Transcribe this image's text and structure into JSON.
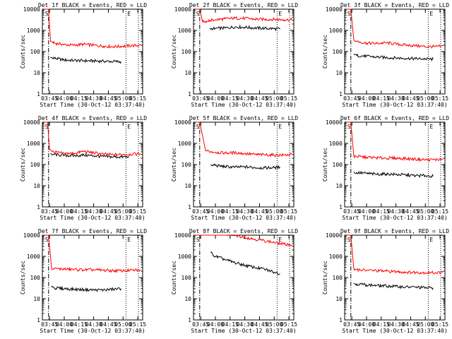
{
  "figure": {
    "xlabel": "Start Time (30-Oct-12 03:37:40)",
    "ylabel": "Counts/sec",
    "x_ticks": [
      "03:45",
      "04:00",
      "04:15",
      "04:30",
      "04:45",
      "05:00",
      "05:15"
    ],
    "y_ticks": [
      "1",
      "10",
      "100",
      "1000",
      "10000"
    ],
    "marker_start": "S",
    "marker_end": "E",
    "colors": {
      "events": "#000000",
      "lld": "#ff0000",
      "axes": "#000000"
    }
  },
  "chart_data": [
    {
      "type": "line",
      "title": "Det 1f BLACK = Events, RED = LLD",
      "yscale": "log",
      "ylim": [
        1,
        10000
      ],
      "xlim": [
        "03:37:40",
        "05:20:00"
      ],
      "t_start": "03:44:00",
      "t_end": "05:03:00",
      "series": [
        {
          "name": "Events",
          "color": "#000000",
          "x": [
            "03:46",
            "03:50",
            "04:00",
            "04:10",
            "04:20",
            "04:30",
            "04:40",
            "04:50",
            "04:58"
          ],
          "y": [
            50,
            48,
            40,
            38,
            37,
            36,
            35,
            34,
            33
          ]
        },
        {
          "name": "LLD",
          "color": "#ff0000",
          "x": [
            "03:40",
            "03:44",
            "03:46",
            "03:50",
            "04:00",
            "04:10",
            "04:20",
            "04:30",
            "04:40",
            "04:50",
            "05:00",
            "05:10",
            "05:18"
          ],
          "y": [
            10000,
            10000,
            300,
            250,
            210,
            200,
            220,
            200,
            180,
            170,
            180,
            190,
            200
          ]
        }
      ]
    },
    {
      "type": "line",
      "title": "Det 2f BLACK = Events, RED = LLD",
      "yscale": "log",
      "ylim": [
        1,
        10000
      ],
      "xlim": [
        "03:37:40",
        "05:20:00"
      ],
      "t_start": "03:44:00",
      "t_end": "05:03:00",
      "series": [
        {
          "name": "Events",
          "color": "#000000",
          "x": [
            "03:54",
            "04:00",
            "04:10",
            "04:20",
            "04:30",
            "04:40",
            "04:50",
            "05:00",
            "05:06"
          ],
          "y": [
            1200,
            1250,
            1300,
            1450,
            1400,
            1300,
            1250,
            1200,
            1150
          ]
        },
        {
          "name": "LLD",
          "color": "#ff0000",
          "x": [
            "03:40",
            "03:44",
            "03:47",
            "03:55",
            "04:00",
            "04:10",
            "04:20",
            "04:30",
            "04:40",
            "04:50",
            "05:00",
            "05:10",
            "05:18"
          ],
          "y": [
            10000,
            10000,
            2500,
            3000,
            3200,
            3500,
            3800,
            3700,
            3400,
            3300,
            3300,
            3200,
            3100
          ]
        }
      ]
    },
    {
      "type": "line",
      "title": "Det 3f BLACK = Events, RED = LLD",
      "yscale": "log",
      "ylim": [
        1,
        10000
      ],
      "xlim": [
        "03:37:40",
        "05:20:00"
      ],
      "t_start": "03:44:00",
      "t_end": "05:03:00",
      "series": [
        {
          "name": "Events",
          "color": "#000000",
          "x": [
            "03:47",
            "03:50",
            "04:00",
            "04:10",
            "04:20",
            "04:30",
            "04:40",
            "04:50",
            "05:00",
            "05:08"
          ],
          "y": [
            70,
            65,
            60,
            55,
            52,
            50,
            48,
            46,
            45,
            43
          ]
        },
        {
          "name": "LLD",
          "color": "#ff0000",
          "x": [
            "03:40",
            "03:44",
            "03:47",
            "03:50",
            "04:00",
            "04:10",
            "04:20",
            "04:30",
            "04:40",
            "04:50",
            "05:00",
            "05:10",
            "05:18"
          ],
          "y": [
            10000,
            10000,
            350,
            300,
            250,
            240,
            260,
            230,
            200,
            190,
            170,
            170,
            180
          ]
        }
      ]
    },
    {
      "type": "line",
      "title": "Det 4f BLACK = Events, RED = LLD",
      "yscale": "log",
      "ylim": [
        1,
        10000
      ],
      "xlim": [
        "03:37:40",
        "05:20:00"
      ],
      "t_start": "03:44:00",
      "t_end": "05:03:00",
      "series": [
        {
          "name": "Events",
          "color": "#000000",
          "x": [
            "03:46",
            "03:50",
            "04:00",
            "04:10",
            "04:20",
            "04:30",
            "04:40",
            "04:50",
            "05:00",
            "05:06"
          ],
          "y": [
            320,
            300,
            270,
            260,
            280,
            260,
            240,
            230,
            230,
            220
          ]
        },
        {
          "name": "LLD",
          "color": "#ff0000",
          "x": [
            "03:40",
            "03:43",
            "03:45",
            "03:48",
            "04:00",
            "04:10",
            "04:20",
            "04:30",
            "04:40",
            "04:50",
            "05:00",
            "05:10",
            "05:18"
          ],
          "y": [
            10000,
            10000,
            500,
            400,
            330,
            340,
            420,
            360,
            310,
            290,
            300,
            310,
            320
          ]
        }
      ]
    },
    {
      "type": "line",
      "title": "Det 5f BLACK = Events, RED = LLD",
      "yscale": "log",
      "ylim": [
        1,
        10000
      ],
      "xlim": [
        "03:37:40",
        "05:20:00"
      ],
      "t_start": "03:44:00",
      "t_end": "05:03:00",
      "series": [
        {
          "name": "Events",
          "color": "#000000",
          "x": [
            "03:55",
            "04:00",
            "04:10",
            "04:20",
            "04:30",
            "04:40",
            "04:50",
            "05:00",
            "05:06"
          ],
          "y": [
            100,
            90,
            80,
            75,
            78,
            72,
            70,
            72,
            75
          ]
        },
        {
          "name": "LLD",
          "color": "#ff0000",
          "x": [
            "03:40",
            "03:44",
            "03:50",
            "04:00",
            "04:10",
            "04:20",
            "04:30",
            "04:40",
            "04:50",
            "05:00",
            "05:10",
            "05:18"
          ],
          "y": [
            10000,
            10000,
            450,
            380,
            350,
            360,
            330,
            300,
            290,
            280,
            280,
            300
          ]
        }
      ]
    },
    {
      "type": "line",
      "title": "Det 6f BLACK = Events, RED = LLD",
      "yscale": "log",
      "ylim": [
        1,
        10000
      ],
      "xlim": [
        "03:37:40",
        "05:20:00"
      ],
      "t_start": "03:44:00",
      "t_end": "05:03:00",
      "series": [
        {
          "name": "Events",
          "color": "#000000",
          "x": [
            "03:47",
            "03:50",
            "04:00",
            "04:10",
            "04:20",
            "04:30",
            "04:40",
            "04:50",
            "05:00",
            "05:08"
          ],
          "y": [
            45,
            42,
            38,
            35,
            36,
            34,
            32,
            30,
            30,
            28
          ]
        },
        {
          "name": "LLD",
          "color": "#ff0000",
          "x": [
            "03:40",
            "03:44",
            "03:47",
            "03:50",
            "04:00",
            "04:10",
            "04:20",
            "04:30",
            "04:40",
            "04:50",
            "05:00",
            "05:10",
            "05:18"
          ],
          "y": [
            10000,
            10000,
            250,
            240,
            220,
            210,
            200,
            200,
            190,
            180,
            170,
            170,
            180
          ]
        }
      ]
    },
    {
      "type": "line",
      "title": "Det 7f BLACK = Events, RED = LLD",
      "yscale": "log",
      "ylim": [
        1,
        10000
      ],
      "xlim": [
        "03:37:40",
        "05:20:00"
      ],
      "t_start": "03:44:00",
      "t_end": "05:03:00",
      "series": [
        {
          "name": "Events",
          "color": "#000000",
          "x": [
            "03:47",
            "03:50",
            "04:00",
            "04:10",
            "04:20",
            "04:30",
            "04:40",
            "04:50",
            "04:58"
          ],
          "y": [
            35,
            32,
            30,
            28,
            27,
            26,
            26,
            28,
            30
          ]
        },
        {
          "name": "LLD",
          "color": "#ff0000",
          "x": [
            "03:40",
            "03:44",
            "03:47",
            "03:50",
            "04:00",
            "04:10",
            "04:20",
            "04:30",
            "04:40",
            "04:50",
            "05:00",
            "05:10",
            "05:18"
          ],
          "y": [
            10000,
            10000,
            280,
            260,
            250,
            240,
            230,
            230,
            220,
            210,
            210,
            220,
            230
          ]
        }
      ]
    },
    {
      "type": "line",
      "title": "Det 8f BLACK = Events, RED = LLD",
      "yscale": "log",
      "ylim": [
        1,
        10000
      ],
      "xlim": [
        "03:37:40",
        "05:20:00"
      ],
      "t_start": "03:44:00",
      "t_end": "05:03:00",
      "series": [
        {
          "name": "Events",
          "color": "#000000",
          "x": [
            "03:55",
            "04:00",
            "04:10",
            "04:20",
            "04:30",
            "04:40",
            "04:50",
            "05:00",
            "05:06"
          ],
          "y": [
            1500,
            1000,
            700,
            500,
            380,
            300,
            250,
            180,
            150
          ]
        },
        {
          "name": "LLD",
          "color": "#ff0000",
          "x": [
            "03:40",
            "03:44",
            "04:00",
            "04:10",
            "04:20",
            "04:30",
            "04:40",
            "04:50",
            "05:00",
            "05:10",
            "05:18"
          ],
          "y": [
            10000,
            10000,
            10000,
            10000,
            9500,
            8000,
            6500,
            5500,
            4500,
            3800,
            3500
          ]
        }
      ]
    },
    {
      "type": "line",
      "title": "Det 9f BLACK = Events, RED = LLD",
      "yscale": "log",
      "ylim": [
        1,
        10000
      ],
      "xlim": [
        "03:37:40",
        "05:20:00"
      ],
      "t_start": "03:44:00",
      "t_end": "05:03:00",
      "series": [
        {
          "name": "Events",
          "color": "#000000",
          "x": [
            "03:47",
            "03:50",
            "04:00",
            "04:10",
            "04:20",
            "04:30",
            "04:40",
            "04:50",
            "05:00",
            "05:08"
          ],
          "y": [
            55,
            50,
            45,
            42,
            40,
            38,
            36,
            35,
            33,
            32
          ]
        },
        {
          "name": "LLD",
          "color": "#ff0000",
          "x": [
            "03:40",
            "03:44",
            "03:47",
            "03:50",
            "04:00",
            "04:10",
            "04:20",
            "04:30",
            "04:40",
            "04:50",
            "05:00",
            "05:10",
            "05:18"
          ],
          "y": [
            10000,
            10000,
            260,
            240,
            220,
            210,
            200,
            190,
            180,
            175,
            170,
            170,
            175
          ]
        }
      ]
    }
  ]
}
